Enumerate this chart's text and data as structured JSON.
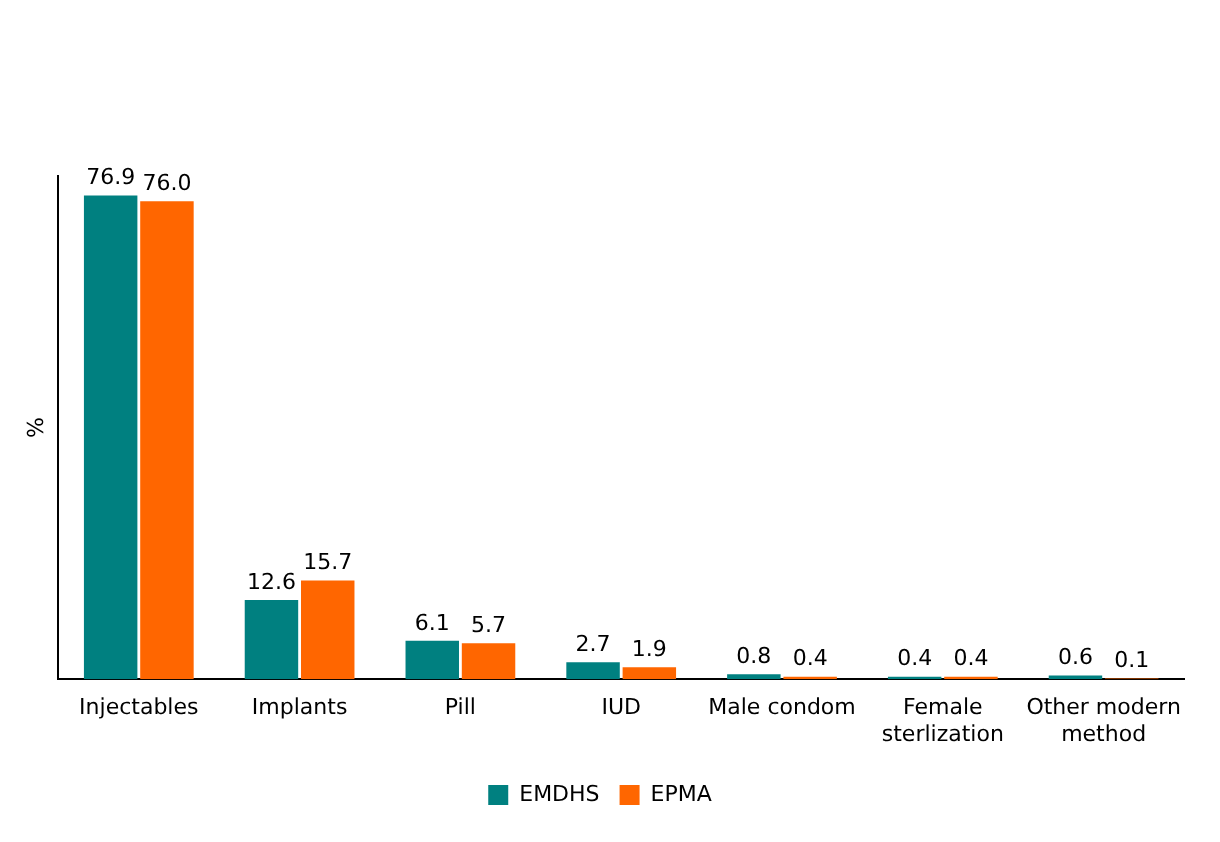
{
  "chart_data": {
    "type": "bar",
    "ylabel": "%",
    "categories": [
      "Injectables",
      "Implants",
      "Pill",
      "IUD",
      "Male condom",
      "Female sterlization",
      "Other modern method"
    ],
    "series": [
      {
        "name": "EMDHS",
        "color": "#008080",
        "values": [
          76.9,
          12.6,
          6.1,
          2.7,
          0.8,
          0.4,
          0.6
        ],
        "value_labels": [
          "76.9",
          "12.6",
          "6.1",
          "2.7",
          "0.8",
          "0.4",
          "0.6"
        ]
      },
      {
        "name": "EPMA",
        "color": "#ff6600",
        "values": [
          76.0,
          15.7,
          5.7,
          1.9,
          0.4,
          0.4,
          0.1
        ],
        "value_labels": [
          "76.0",
          "15.7",
          "5.7",
          "1.9",
          "0.4",
          "0.4",
          "0.1"
        ]
      }
    ],
    "legend": "bottom",
    "grid": false
  }
}
